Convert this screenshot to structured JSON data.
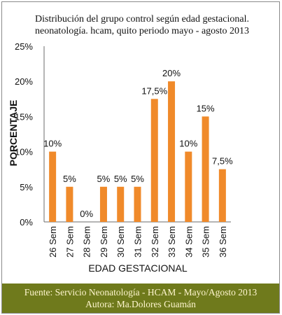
{
  "chart_data": {
    "type": "bar",
    "title": "Distribución del grupo control según edad gestacional. neonatología. hcam, quito periodo mayo - agosto 2013",
    "xlabel": "EDAD GESTACIONAL",
    "ylabel": "PORCENTAJE",
    "ylim": [
      0,
      25
    ],
    "yticks": [
      "0%",
      "5%",
      "10%",
      "15%",
      "20%",
      "25%"
    ],
    "ytick_values": [
      0,
      5,
      10,
      15,
      20,
      25
    ],
    "grid": false,
    "categories": [
      "26 Sem",
      "27 Sem",
      "28 Sem",
      "29 Sem",
      "30 Sem",
      "31 Sem",
      "32 Sem",
      "33 Sem",
      "34 Sem",
      "35 Sem",
      "36 Sem"
    ],
    "values": [
      10,
      5,
      0,
      5,
      5,
      5,
      17.5,
      20,
      10,
      15,
      7.5
    ],
    "data_labels": [
      "10%",
      "5%",
      "0%",
      "5%",
      "5%",
      "5%",
      "17,5%",
      "20%",
      "10%",
      "15%",
      "7,5%"
    ],
    "bar_color": "#f08a2a"
  },
  "footer": {
    "line1": "Fuente: Servicio Neonatología - HCAM - Mayo/Agosto 2013",
    "line2": "Autora: Ma.Dolores Guamán",
    "background": "#6f7a1c",
    "text_color": "#fff6cf"
  }
}
